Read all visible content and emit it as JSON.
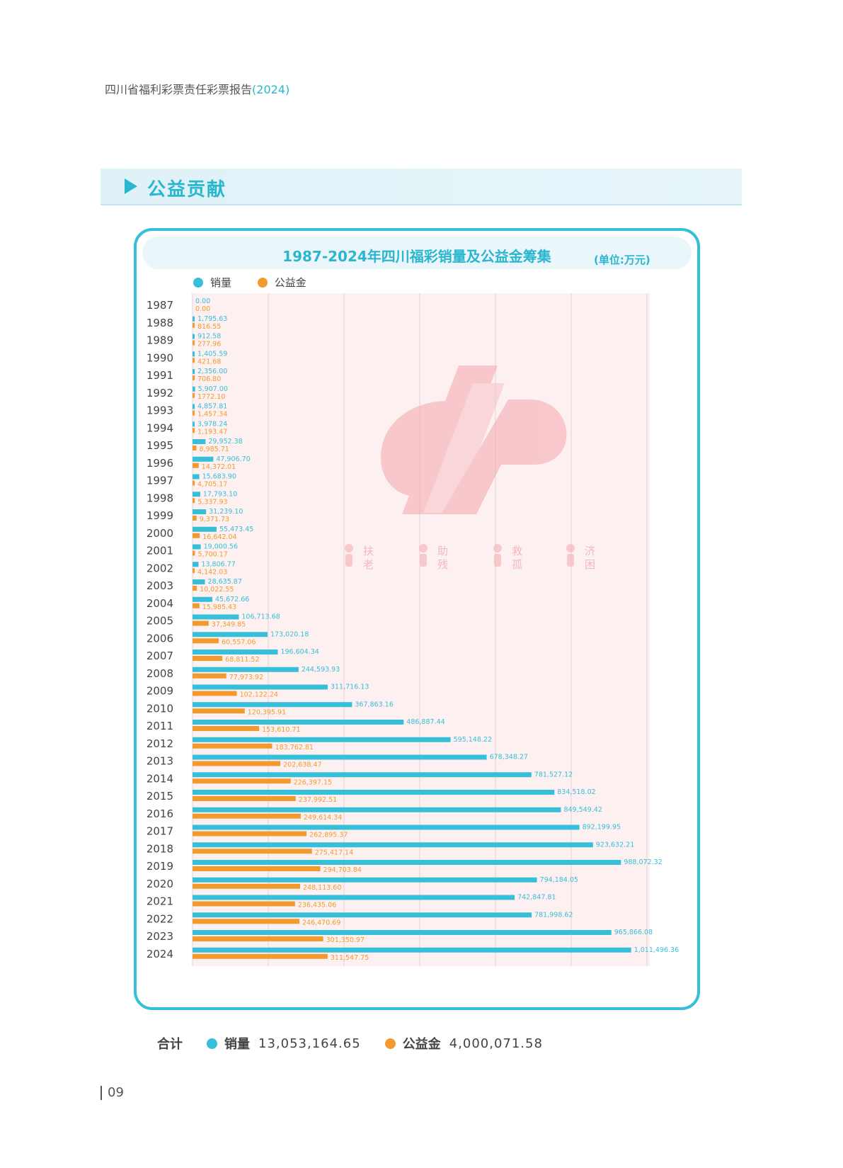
{
  "header": {
    "report_title": "四川省福利彩票责任彩票报告",
    "report_year": "(2024)"
  },
  "section": {
    "title": "公益贡献"
  },
  "chart_data": {
    "type": "bar",
    "orientation": "horizontal",
    "title": "1987-2024年四川福彩销量及公益金筹集",
    "unit": "(单位:万元)",
    "legend_position": "top-left",
    "categories": [
      "1987",
      "1988",
      "1989",
      "1990",
      "1991",
      "1992",
      "1993",
      "1994",
      "1995",
      "1996",
      "1997",
      "1998",
      "1999",
      "2000",
      "2001",
      "2002",
      "2003",
      "2004",
      "2005",
      "2006",
      "2007",
      "2008",
      "2009",
      "2010",
      "2011",
      "2012",
      "2013",
      "2014",
      "2015",
      "2016",
      "2017",
      "2018",
      "2019",
      "2020",
      "2021",
      "2022",
      "2023",
      "2024"
    ],
    "series": [
      {
        "name": "销量",
        "color": "#36bfd8",
        "values": [
          0.0,
          1795.63,
          912.58,
          1405.59,
          2356.0,
          5907.0,
          4857.81,
          3978.24,
          29952.38,
          47906.7,
          15683.9,
          17793.1,
          31239.1,
          55473.45,
          19000.56,
          13806.77,
          28635.87,
          45672.66,
          106713.68,
          173020.18,
          196604.34,
          244593.93,
          311716.13,
          367863.16,
          486887.44,
          595148.22,
          678348.27,
          781527.12,
          834518.02,
          849549.42,
          892199.95,
          923632.21,
          988072.32,
          794184.05,
          742847.81,
          781998.62,
          965866.08,
          1011496.36
        ],
        "labels": [
          "0.00",
          "1,795.63",
          "912.58",
          "1,405.59",
          "2,356.00",
          "5,907.00",
          "4,857.81",
          "3,978.24",
          "29,952.38",
          "47,906.70",
          "15,683.90",
          "17,793.10",
          "31,239.10",
          "55,473.45",
          "19,000.56",
          "13,806.77",
          "28,635.87",
          "45,672.66",
          "106,713.68",
          "173,020.18",
          "196,604.34",
          "244,593.93",
          "311,716.13",
          "367,863.16",
          "486,887.44",
          "595,148.22",
          "678,348.27",
          "781,527.12",
          "834,518.02",
          "849,549.42",
          "892,199.95",
          "923,632.21",
          "988,072.32",
          "794,184.05",
          "742,847.81",
          "781,998.62",
          "965,866.08",
          "1,011,496.36"
        ]
      },
      {
        "name": "公益金",
        "color": "#f39a2e",
        "values": [
          0.0,
          816.55,
          277.96,
          421.68,
          706.8,
          1772.1,
          1457.34,
          1193.47,
          8985.71,
          14372.01,
          4705.17,
          5337.93,
          9371.73,
          16642.04,
          5700.17,
          4142.03,
          10022.55,
          15985.43,
          37349.85,
          60557.06,
          68811.52,
          77973.92,
          102122.24,
          120395.91,
          153610.71,
          183762.81,
          202638.47,
          226397.15,
          237992.51,
          249614.34,
          262895.37,
          275417.14,
          294703.84,
          248113.6,
          236435.06,
          246470.69,
          301350.97,
          311547.75
        ],
        "labels": [
          "0.00",
          "816.55",
          "277.96",
          "421.68",
          "706.80",
          "1772.10",
          "1,457.34",
          "1,193.47",
          "8,985.71",
          "14,372.01",
          "4,705.17",
          "5,337.93",
          "9,371.73",
          "16,642.04",
          "5,700.17",
          "4,142.03",
          "10,022.55",
          "15,985.43",
          "37,349.85",
          "60,557.06",
          "68,811.52",
          "77,973.92",
          "102,122.24",
          "120,395.91",
          "153,610.71",
          "183,762.81",
          "202,638.47",
          "226,397.15",
          "237,992.51",
          "249,614.34",
          "262,895.37",
          "275,417.14",
          "294,703.84",
          "248,113.60",
          "236,435.06",
          "246,470.69",
          "301,350.97",
          "311,547.75"
        ]
      }
    ],
    "xlim": [
      0,
      1050000
    ],
    "grid": true
  },
  "watermark": {
    "tags": [
      "扶老",
      "助残",
      "救孤",
      "济困"
    ]
  },
  "totals": {
    "label": "合计",
    "sales_label": "销量",
    "sales_value": "13,053,164.65",
    "welfare_label": "公益金",
    "welfare_value": "4,000,071.58"
  },
  "footer": {
    "page_number": "09"
  }
}
